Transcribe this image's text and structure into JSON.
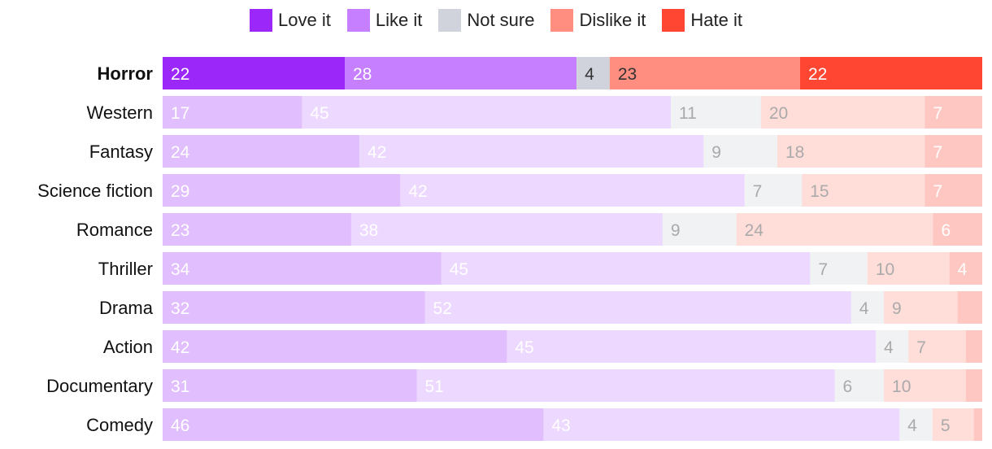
{
  "chart_data": {
    "type": "bar",
    "orientation": "horizontal",
    "stacked": true,
    "normalized": true,
    "title": "",
    "xlabel": "",
    "ylabel": "",
    "highlighted_category": "Horror",
    "categories": [
      "Horror",
      "Western",
      "Fantasy",
      "Science fiction",
      "Romance",
      "Thriller",
      "Drama",
      "Action",
      "Documentary",
      "Comedy"
    ],
    "series": [
      {
        "name": "Love it",
        "color": "#9c27f9",
        "values": [
          22,
          17,
          24,
          29,
          23,
          34,
          32,
          42,
          31,
          46
        ]
      },
      {
        "name": "Like it",
        "color": "#c57fff",
        "values": [
          28,
          45,
          42,
          42,
          38,
          45,
          52,
          45,
          51,
          43
        ]
      },
      {
        "name": "Not sure",
        "color": "#d0d3dc",
        "values": [
          4,
          11,
          9,
          7,
          9,
          7,
          4,
          4,
          6,
          4
        ]
      },
      {
        "name": "Dislike it",
        "color": "#ff8d80",
        "values": [
          23,
          20,
          18,
          15,
          24,
          10,
          9,
          7,
          10,
          5
        ]
      },
      {
        "name": "Hate it",
        "color": "#ff4632",
        "values": [
          22,
          7,
          7,
          7,
          6,
          4,
          3,
          2,
          2,
          1
        ]
      }
    ],
    "hidden_labels": [
      [],
      [],
      [],
      [],
      [],
      [],
      [
        4
      ],
      [
        4
      ],
      [
        4
      ],
      [
        4
      ]
    ],
    "faded_opacity": 0.3
  }
}
